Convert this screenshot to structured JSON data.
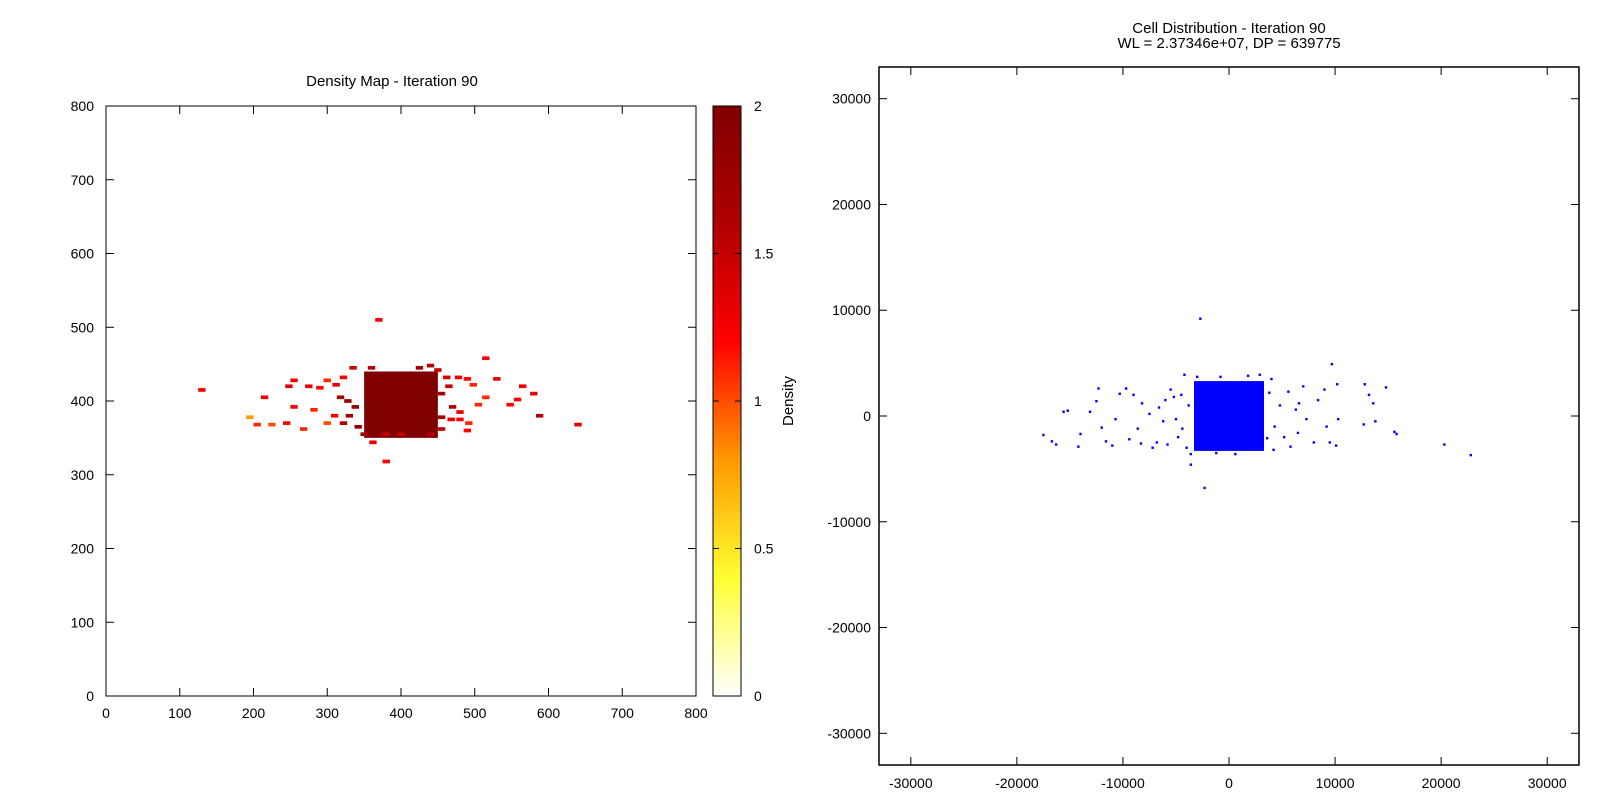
{
  "chart_data": [
    {
      "type": "heatmap",
      "title": "Density Map - Iteration 90",
      "xlabel": "",
      "ylabel": "",
      "xlim": [
        0,
        800
      ],
      "ylim": [
        0,
        800
      ],
      "x_ticks": [
        "0",
        "100",
        "200",
        "300",
        "400",
        "500",
        "600",
        "700",
        "800"
      ],
      "y_ticks": [
        "0",
        "100",
        "200",
        "300",
        "400",
        "500",
        "600",
        "700",
        "800"
      ],
      "colorbar": {
        "label": "Density",
        "range": [
          0,
          2
        ],
        "ticks": [
          "0",
          "0.5",
          "1",
          "1.5",
          "2"
        ],
        "colors": [
          "#ffffff",
          "#ffff33",
          "#ff9900",
          "#ff0000",
          "#b00000",
          "#800000"
        ]
      },
      "grid": false,
      "cell_size": 10,
      "dense_block": {
        "x": [
          350,
          450
        ],
        "y": [
          350,
          440
        ],
        "value": 2.0
      },
      "cells": [
        [
          130,
          415,
          1.2
        ],
        [
          215,
          405,
          1.3
        ],
        [
          195,
          378,
          0.8
        ],
        [
          205,
          368,
          1.1
        ],
        [
          225,
          368,
          1.0
        ],
        [
          245,
          370,
          1.2
        ],
        [
          268,
          362,
          1.1
        ],
        [
          255,
          392,
          1.2
        ],
        [
          282,
          388,
          1.1
        ],
        [
          248,
          420,
          1.4
        ],
        [
          255,
          428,
          1.2
        ],
        [
          275,
          420,
          1.3
        ],
        [
          290,
          418,
          1.2
        ],
        [
          300,
          428,
          1.1
        ],
        [
          322,
          432,
          1.2
        ],
        [
          312,
          422,
          1.3
        ],
        [
          318,
          405,
          1.7
        ],
        [
          328,
          400,
          1.8
        ],
        [
          322,
          370,
          1.6
        ],
        [
          338,
          392,
          1.8
        ],
        [
          330,
          380,
          1.7
        ],
        [
          342,
          365,
          1.9
        ],
        [
          335,
          445,
          1.4
        ],
        [
          310,
          380,
          1.2
        ],
        [
          300,
          370,
          1.0
        ],
        [
          370,
          510,
          1.2
        ],
        [
          380,
          318,
          1.2
        ],
        [
          362,
          344,
          1.3
        ],
        [
          455,
          410,
          1.7
        ],
        [
          465,
          420,
          1.5
        ],
        [
          462,
          432,
          1.4
        ],
        [
          478,
          432,
          1.3
        ],
        [
          490,
          430,
          1.2
        ],
        [
          498,
          422,
          1.1
        ],
        [
          470,
          392,
          1.6
        ],
        [
          468,
          375,
          1.3
        ],
        [
          480,
          385,
          1.3
        ],
        [
          492,
          370,
          1.1
        ],
        [
          455,
          378,
          1.7
        ],
        [
          505,
          395,
          1.1
        ],
        [
          515,
          458,
          1.2
        ],
        [
          515,
          405,
          1.1
        ],
        [
          530,
          430,
          1.3
        ],
        [
          548,
          395,
          1.2
        ],
        [
          558,
          402,
          1.2
        ],
        [
          565,
          420,
          1.2
        ],
        [
          580,
          410,
          1.3
        ],
        [
          588,
          380,
          1.6
        ],
        [
          640,
          368,
          1.3
        ],
        [
          450,
          442,
          1.5
        ],
        [
          440,
          448,
          1.6
        ],
        [
          425,
          445,
          1.7
        ],
        [
          360,
          445,
          1.6
        ],
        [
          455,
          362,
          1.5
        ],
        [
          440,
          355,
          1.6
        ],
        [
          400,
          355,
          1.5
        ],
        [
          380,
          355,
          1.5
        ],
        [
          350,
          355,
          1.7
        ],
        [
          490,
          360,
          1.2
        ],
        [
          480,
          375,
          1.2
        ]
      ]
    },
    {
      "type": "scatter",
      "title": "Cell Distribution - Iteration 90",
      "subtitle": "WL = 2.37346e+07, DP = 639775",
      "xlabel": "",
      "ylabel": "",
      "xlim": [
        -33000,
        33000
      ],
      "ylim": [
        -33000,
        33000
      ],
      "x_ticks": [
        "-30000",
        "-20000",
        "-10000",
        "0",
        "10000",
        "20000",
        "30000"
      ],
      "y_ticks": [
        "-30000",
        "-20000",
        "-10000",
        "0",
        "10000",
        "20000",
        "30000"
      ],
      "color": "#0000ff",
      "grid": false,
      "dense_block": {
        "x": [
          -3300,
          3300
        ],
        "y": [
          -3300,
          3300
        ]
      },
      "points": [
        [
          -2700,
          9200
        ],
        [
          -2300,
          -6800
        ],
        [
          -3600,
          -4600
        ],
        [
          9700,
          4900
        ],
        [
          22800,
          -3700
        ],
        [
          20300,
          -2700
        ],
        [
          15800,
          -1700
        ],
        [
          15600,
          -1500
        ],
        [
          14800,
          2700
        ],
        [
          13600,
          1200
        ],
        [
          12800,
          3000
        ],
        [
          13200,
          2000
        ],
        [
          13800,
          -500
        ],
        [
          12700,
          -800
        ],
        [
          10300,
          -300
        ],
        [
          10100,
          -2800
        ],
        [
          9500,
          -2500
        ],
        [
          9200,
          -1000
        ],
        [
          9000,
          2500
        ],
        [
          10200,
          3000
        ],
        [
          8000,
          -2500
        ],
        [
          7000,
          2800
        ],
        [
          6500,
          -1600
        ],
        [
          6300,
          600
        ],
        [
          5200,
          -2000
        ],
        [
          4800,
          1000
        ],
        [
          4300,
          -1000
        ],
        [
          6600,
          1200
        ],
        [
          7300,
          -300
        ],
        [
          8400,
          1500
        ],
        [
          -4200,
          3900
        ],
        [
          -5500,
          2500
        ],
        [
          -6000,
          1500
        ],
        [
          -6200,
          -500
        ],
        [
          -6800,
          -2500
        ],
        [
          -7500,
          200
        ],
        [
          -8200,
          1200
        ],
        [
          -8300,
          -2600
        ],
        [
          -9000,
          2000
        ],
        [
          -9700,
          2600
        ],
        [
          -10300,
          2100
        ],
        [
          -10700,
          -300
        ],
        [
          -11000,
          -2800
        ],
        [
          -11600,
          -2400
        ],
        [
          -12000,
          -1100
        ],
        [
          -12300,
          2600
        ],
        [
          -12500,
          1400
        ],
        [
          -13100,
          400
        ],
        [
          -14000,
          -1700
        ],
        [
          -14200,
          -2900
        ],
        [
          -15200,
          500
        ],
        [
          -15600,
          400
        ],
        [
          -16300,
          -2700
        ],
        [
          -16700,
          -2400
        ],
        [
          -17500,
          -1800
        ],
        [
          -4800,
          -2000
        ],
        [
          -4500,
          2000
        ],
        [
          -4000,
          -3000
        ],
        [
          -3800,
          1000
        ],
        [
          -5000,
          -300
        ],
        [
          -4400,
          -1200
        ],
        [
          -5800,
          -2700
        ],
        [
          -5200,
          1800
        ],
        [
          -3600,
          -3600
        ],
        [
          4000,
          3500
        ],
        [
          4200,
          -3200
        ],
        [
          3800,
          2200
        ],
        [
          3600,
          -2100
        ],
        [
          5600,
          2300
        ],
        [
          5800,
          -2900
        ],
        [
          -8600,
          -1200
        ],
        [
          -7200,
          -3000
        ],
        [
          -6600,
          800
        ],
        [
          -9400,
          -2200
        ],
        [
          2900,
          3900
        ],
        [
          -3000,
          3700
        ],
        [
          600,
          -3600
        ],
        [
          -1200,
          -3500
        ],
        [
          1800,
          3800
        ],
        [
          -800,
          3700
        ]
      ]
    }
  ]
}
